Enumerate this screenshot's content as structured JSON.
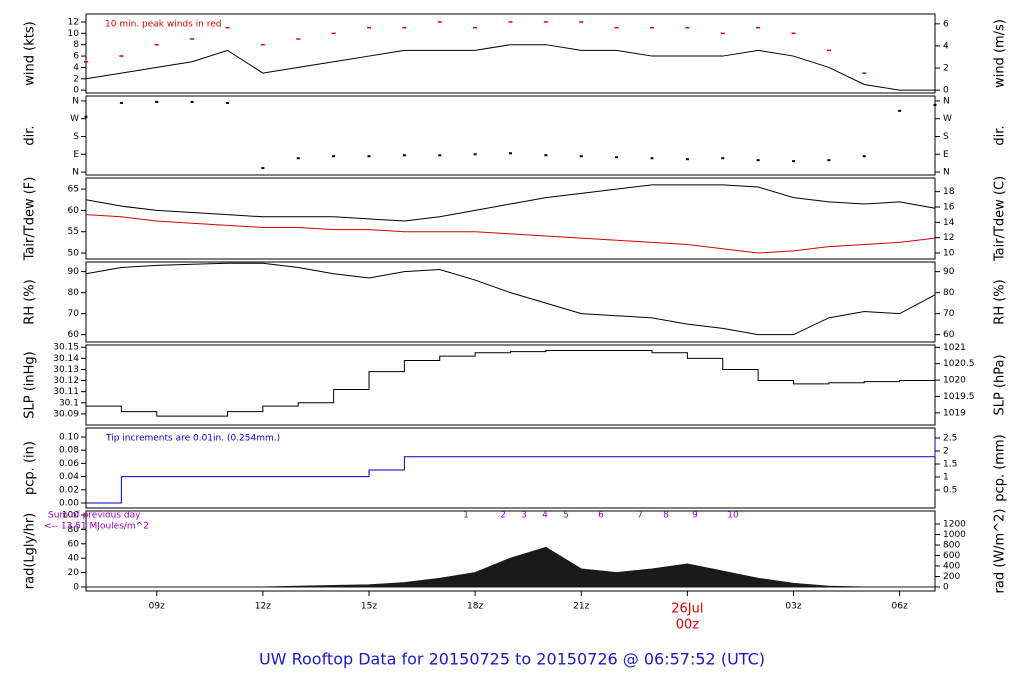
{
  "title": "UW Rooftop Data for 20150725  to  20150726 @ 06:57:52  (UTC)",
  "chart_data": [
    {
      "type": "line",
      "ylabel": "wind (kts)",
      "y2label": "wind (m/s)",
      "annotation": "10 min. peak winds in red",
      "xlim": [
        7,
        31
      ],
      "ylim": [
        -0.5,
        13.4
      ],
      "yticks": [
        0,
        2,
        4,
        6,
        8,
        10,
        12
      ],
      "y2lim": [
        -0.26,
        6.89
      ],
      "y2ticks": [
        0,
        2,
        4,
        6
      ],
      "x": [
        7,
        8,
        9,
        10,
        11,
        12,
        13,
        14,
        15,
        16,
        17,
        18,
        19,
        20,
        21,
        22,
        23,
        24,
        25,
        26,
        27,
        28,
        29,
        30,
        31
      ],
      "series": [
        {
          "name": "wind",
          "style": "line",
          "color": "#000000",
          "values": [
            2,
            3,
            4,
            5,
            7,
            3,
            4,
            5,
            6,
            7,
            7,
            7,
            8,
            8,
            7,
            7,
            6,
            6,
            6,
            7,
            6,
            4,
            1,
            0,
            0
          ]
        },
        {
          "name": "peak",
          "style": "points",
          "color": "#e00000",
          "values": [
            5,
            6,
            8,
            9,
            11,
            8,
            9,
            10,
            11,
            11,
            12,
            11,
            12,
            12,
            12,
            11,
            11,
            11,
            10,
            11,
            10,
            7,
            3,
            null,
            null
          ]
        }
      ]
    },
    {
      "type": "scatter",
      "ylabel": "dir.",
      "y2label": "dir.",
      "xlim": [
        7,
        31
      ],
      "ylim": [
        -15,
        385
      ],
      "yticks": [
        {
          "value": 0,
          "label": "N"
        },
        {
          "value": 90,
          "label": "E"
        },
        {
          "value": 180,
          "label": "S"
        },
        {
          "value": 270,
          "label": "W"
        },
        {
          "value": 360,
          "label": "N"
        }
      ],
      "y2lim": [
        -15,
        385
      ],
      "y2ticks": [
        {
          "value": 0,
          "label": "N"
        },
        {
          "value": 90,
          "label": "E"
        },
        {
          "value": 180,
          "label": "S"
        },
        {
          "value": 270,
          "label": "W"
        },
        {
          "value": 360,
          "label": "N"
        }
      ],
      "x": [
        7,
        8,
        9,
        10,
        11,
        12,
        13,
        14,
        15,
        16,
        17,
        18,
        19,
        20,
        21,
        22,
        23,
        24,
        25,
        26,
        27,
        28,
        29,
        30,
        31
      ],
      "series": [
        {
          "name": "direction",
          "style": "points",
          "color": "#000000",
          "values": [
            280,
            350,
            355,
            355,
            350,
            20,
            70,
            80,
            80,
            85,
            85,
            90,
            95,
            85,
            80,
            75,
            70,
            65,
            70,
            60,
            55,
            60,
            80,
            310,
            340
          ]
        }
      ]
    },
    {
      "type": "line",
      "ylabel": "Tair/Tdew (F)",
      "y2label": "Tair/Tdew (C)",
      "xlim": [
        7,
        31
      ],
      "ylim": [
        48.6,
        67.6
      ],
      "yticks": [
        50,
        55,
        60,
        65
      ],
      "y2lim": [
        9.22,
        19.78
      ],
      "y2ticks": [
        10,
        12,
        14,
        16,
        18
      ],
      "x": [
        7,
        8,
        9,
        10,
        11,
        12,
        13,
        14,
        15,
        16,
        17,
        18,
        19,
        20,
        21,
        22,
        23,
        24,
        25,
        26,
        27,
        28,
        29,
        30,
        31
      ],
      "series": [
        {
          "name": "Tair",
          "style": "line",
          "color": "#000000",
          "values": [
            62.5,
            61,
            60,
            59.5,
            59,
            58.5,
            58.5,
            58.5,
            58,
            57.5,
            58.5,
            60,
            61.5,
            63,
            64,
            65,
            66,
            66,
            66,
            65.5,
            63,
            62,
            61.5,
            62,
            60.5
          ]
        },
        {
          "name": "Tdew",
          "style": "line",
          "color": "#e00000",
          "values": [
            59,
            58.5,
            57.5,
            57,
            56.5,
            56,
            56,
            55.5,
            55.5,
            55,
            55,
            55,
            54.5,
            54,
            53.5,
            53,
            52.5,
            52,
            51,
            50,
            50.5,
            51.5,
            52,
            52.5,
            53.5
          ]
        }
      ]
    },
    {
      "type": "line",
      "ylabel": "RH (%)",
      "y2label": "RH (%)",
      "xlim": [
        7,
        31
      ],
      "ylim": [
        56.5,
        94.6
      ],
      "yticks": [
        60,
        70,
        80,
        90
      ],
      "y2lim": [
        56.5,
        94.6
      ],
      "y2ticks": [
        60,
        70,
        80,
        90
      ],
      "x": [
        7,
        8,
        9,
        10,
        11,
        12,
        13,
        14,
        15,
        16,
        17,
        18,
        19,
        20,
        21,
        22,
        23,
        24,
        25,
        26,
        27,
        28,
        29,
        30,
        31
      ],
      "series": [
        {
          "name": "RH",
          "style": "line",
          "color": "#000000",
          "values": [
            89,
            92,
            93,
            93.5,
            94,
            94,
            92,
            89,
            87,
            90,
            91,
            86,
            80,
            75,
            70,
            69,
            68,
            65,
            63,
            60,
            60,
            68,
            71,
            70,
            79
          ]
        }
      ]
    },
    {
      "type": "line",
      "ylabel": "SLP (inHg)",
      "y2label": "SLP (hPa)",
      "xlim": [
        7,
        31
      ],
      "ylim": [
        30.08,
        30.152
      ],
      "yticks": [
        30.09,
        30.1,
        30.11,
        30.12,
        30.13,
        30.14,
        30.15
      ],
      "y2lim": [
        1018.63,
        1021.07
      ],
      "y2ticks": [
        1019,
        1019.5,
        1020,
        1020.5,
        1021
      ],
      "x": [
        7,
        8,
        9,
        10,
        11,
        12,
        13,
        14,
        15,
        16,
        17,
        18,
        19,
        20,
        21,
        22,
        23,
        24,
        25,
        26,
        27,
        28,
        29,
        30,
        31
      ],
      "series": [
        {
          "name": "SLP",
          "style": "step",
          "color": "#000000",
          "values": [
            30.097,
            30.092,
            30.088,
            30.088,
            30.092,
            30.097,
            30.1,
            30.112,
            30.128,
            30.138,
            30.142,
            30.145,
            30.146,
            30.147,
            30.147,
            30.147,
            30.145,
            30.14,
            30.13,
            30.12,
            30.117,
            30.118,
            30.119,
            30.12,
            30.118
          ]
        }
      ]
    },
    {
      "type": "line",
      "ylabel": "pcp. (in)",
      "y2label": "pcp. (mm)",
      "annotation": "Tip increments are 0.01in. (0.254mm.)",
      "xlim": [
        7,
        31
      ],
      "ylim": [
        -0.0076,
        0.1136
      ],
      "yticks": [
        {
          "value": 0,
          "label": "0.00"
        },
        {
          "value": 0.02,
          "label": "0.02"
        },
        {
          "value": 0.04,
          "label": "0.04"
        },
        {
          "value": 0.06,
          "label": "0.06"
        },
        {
          "value": 0.08,
          "label": "0.08"
        },
        {
          "value": 0.1,
          "label": "0.10"
        }
      ],
      "y2lim": [
        -0.193,
        2.885
      ],
      "y2ticks": [
        0.5,
        1,
        1.5,
        2,
        2.5
      ],
      "x": [
        7,
        8,
        9,
        10,
        11,
        12,
        13,
        14,
        15,
        16,
        17,
        18,
        19,
        20,
        21,
        22,
        23,
        24,
        25,
        26,
        27,
        28,
        29,
        30,
        31
      ],
      "series": [
        {
          "name": "pcp",
          "style": "step",
          "color": "#0000cc",
          "values": [
            0,
            0.04,
            0.04,
            0.04,
            0.04,
            0.04,
            0.04,
            0.04,
            0.05,
            0.07,
            0.07,
            0.07,
            0.07,
            0.07,
            0.07,
            0.07,
            0.07,
            0.07,
            0.07,
            0.07,
            0.07,
            0.07,
            0.07,
            0.07,
            0.1
          ]
        }
      ]
    },
    {
      "type": "area",
      "ylabel": "rad(Lgly/hr)",
      "y2label": "rad (W/m^2)",
      "annotations": [
        "Sum of previous day",
        "<-- 13.51 MJoules/m^2"
      ],
      "hour_marks": [
        "1",
        "2",
        "3",
        "4",
        "5",
        "6",
        "7",
        "8",
        "9",
        "10"
      ],
      "date_label": "26Jul",
      "xlim": [
        7,
        31
      ],
      "ylim": [
        -5.6,
        105.6
      ],
      "yticks": [
        0,
        20,
        40,
        60,
        80,
        100
      ],
      "y2lim": [
        -76,
        1448
      ],
      "y2ticks": [
        0,
        200,
        400,
        600,
        800,
        1000,
        1200
      ],
      "xticks": [
        {
          "value": 9,
          "label": "09z"
        },
        {
          "value": 12,
          "label": "12z"
        },
        {
          "value": 15,
          "label": "15z"
        },
        {
          "value": 18,
          "label": "18z"
        },
        {
          "value": 21,
          "label": "21z"
        },
        {
          "value": 24,
          "label": "00z"
        },
        {
          "value": 27,
          "label": "03z"
        },
        {
          "value": 30,
          "label": "06z"
        }
      ],
      "x": [
        7,
        8,
        9,
        10,
        11,
        12,
        13,
        14,
        15,
        16,
        17,
        18,
        19,
        20,
        21,
        22,
        23,
        24,
        25,
        26,
        27,
        28,
        29,
        30,
        31
      ],
      "series": [
        {
          "name": "radiation",
          "style": "area",
          "color": "#1a1a1a",
          "values": [
            0,
            0,
            0,
            0,
            0,
            0,
            1,
            2,
            3,
            6,
            12,
            20,
            40,
            55,
            25,
            20,
            25,
            32,
            22,
            12,
            5,
            1,
            0,
            0,
            0
          ]
        }
      ]
    }
  ]
}
